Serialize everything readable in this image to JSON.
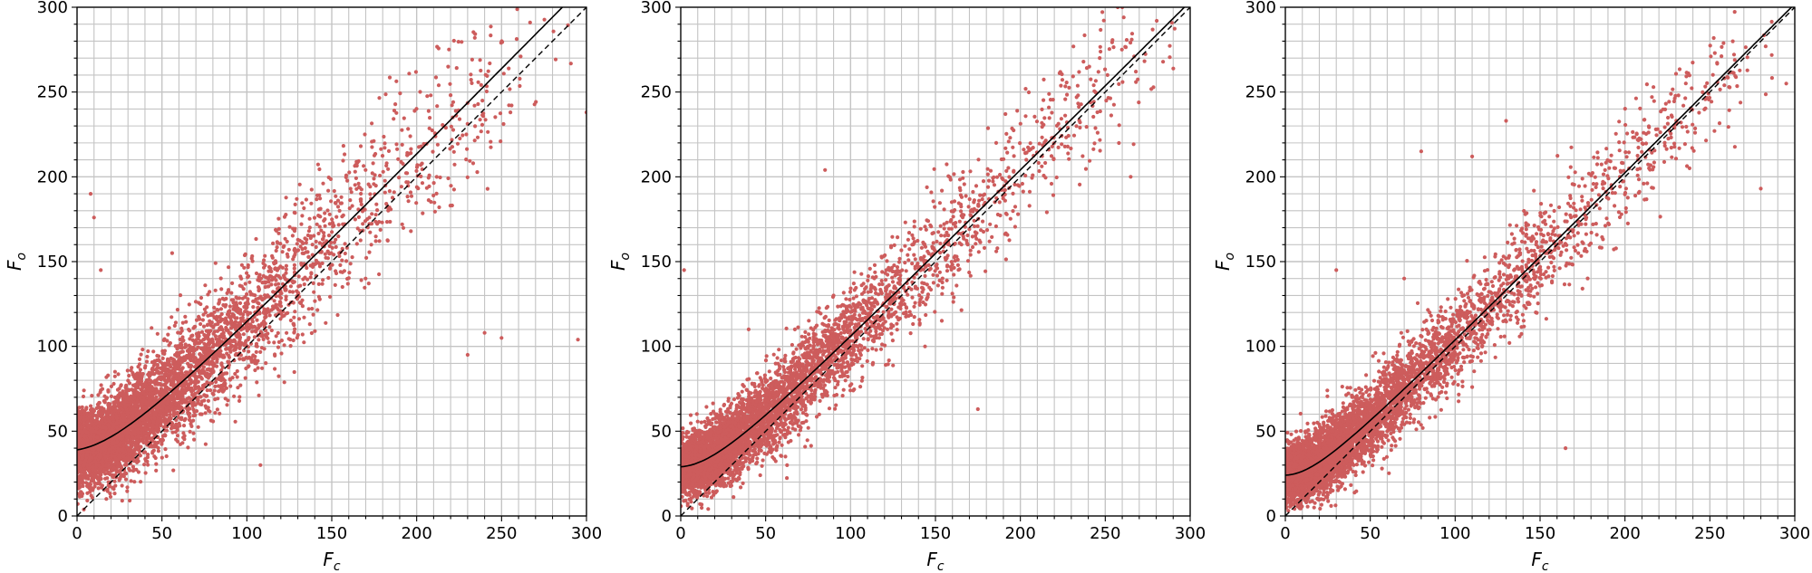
{
  "colors": {
    "points": "#cd5c5c",
    "fit_line": "#000000",
    "identity_line": "#000000",
    "grid": "#c4c4c4",
    "axes": "#000000"
  },
  "chart_data": [
    {
      "type": "scatter",
      "xlabel_main": "F",
      "xlabel_sub": "c",
      "ylabel_main": "F",
      "ylabel_sub": "o",
      "xlim": [
        0,
        300
      ],
      "ylim": [
        0,
        300
      ],
      "xticks": [
        "0",
        "50",
        "100",
        "150",
        "200",
        "250",
        "300"
      ],
      "yticks": [
        "0",
        "50",
        "100",
        "150",
        "200",
        "250",
        "300"
      ],
      "grid": true,
      "fit_line": {
        "style": "solid",
        "intercept": 39,
        "asymptote_slope": 1.02,
        "asymptote_offset": 6
      },
      "identity_line": {
        "style": "dashed",
        "slope": 1,
        "intercept": 0
      },
      "scatter": {
        "n_points": 5000,
        "cluster_center": [
          12,
          40
        ],
        "spread_low": 11,
        "spread_high": 22
      },
      "outliers": [
        [
          8,
          190
        ],
        [
          10,
          176
        ],
        [
          14,
          145
        ],
        [
          295,
          104
        ],
        [
          230,
          95
        ],
        [
          240,
          108
        ],
        [
          250,
          105
        ],
        [
          300,
          238
        ],
        [
          108,
          30
        ],
        [
          85,
          80
        ],
        [
          56,
          155
        ]
      ]
    },
    {
      "type": "scatter",
      "xlabel_main": "F",
      "xlabel_sub": "c",
      "ylabel_main": "F",
      "ylabel_sub": "o",
      "xlim": [
        0,
        300
      ],
      "ylim": [
        0,
        300
      ],
      "xticks": [
        "0",
        "50",
        "100",
        "150",
        "200",
        "250",
        "300"
      ],
      "yticks": [
        "0",
        "50",
        "100",
        "150",
        "200",
        "250",
        "300"
      ],
      "grid": true,
      "fit_line": {
        "style": "solid",
        "intercept": 29,
        "asymptote_slope": 1.0,
        "asymptote_offset": 2
      },
      "identity_line": {
        "style": "dashed",
        "slope": 1,
        "intercept": 0
      },
      "scatter": {
        "n_points": 5000,
        "cluster_center": [
          12,
          30
        ],
        "spread_low": 9,
        "spread_high": 17
      },
      "outliers": [
        [
          2,
          145
        ],
        [
          85,
          204
        ],
        [
          175,
          63
        ],
        [
          265,
          200
        ],
        [
          90,
          130
        ],
        [
          40,
          110
        ],
        [
          260,
          300
        ]
      ]
    },
    {
      "type": "scatter",
      "xlabel_main": "F",
      "xlabel_sub": "c",
      "ylabel_main": "F",
      "ylabel_sub": "o",
      "xlim": [
        0,
        300
      ],
      "ylim": [
        0,
        300
      ],
      "xticks": [
        "0",
        "50",
        "100",
        "150",
        "200",
        "250",
        "300"
      ],
      "yticks": [
        "0",
        "50",
        "100",
        "150",
        "200",
        "250",
        "300"
      ],
      "grid": true,
      "fit_line": {
        "style": "solid",
        "intercept": 24,
        "asymptote_slope": 1.0,
        "asymptote_offset": 1
      },
      "identity_line": {
        "style": "dashed",
        "slope": 1,
        "intercept": 0
      },
      "scatter": {
        "n_points": 5000,
        "cluster_center": [
          15,
          30
        ],
        "spread_low": 9,
        "spread_high": 15
      },
      "outliers": [
        [
          30,
          145
        ],
        [
          130,
          233
        ],
        [
          165,
          40
        ],
        [
          280,
          193
        ],
        [
          295,
          255
        ],
        [
          80,
          215
        ],
        [
          110,
          212
        ],
        [
          85,
          120
        ],
        [
          70,
          140
        ]
      ]
    }
  ]
}
